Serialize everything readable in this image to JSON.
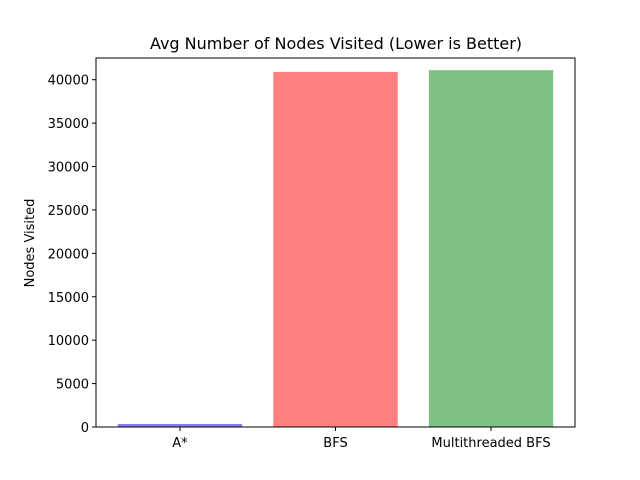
{
  "chart_data": {
    "type": "bar",
    "title": "Avg Number of Nodes Visited (Lower is Better)",
    "xlabel": "",
    "ylabel": "Nodes Visited",
    "categories": [
      "A*",
      "BFS",
      "Multithreaded BFS"
    ],
    "values": [
      350,
      40900,
      41100
    ],
    "colors": [
      "#7f7fee",
      "#ff7f7f",
      "#7fc184"
    ],
    "ylim": [
      0,
      42500
    ],
    "yticks": [
      0,
      5000,
      10000,
      15000,
      20000,
      25000,
      30000,
      35000,
      40000
    ],
    "grid": false,
    "legend": "none"
  }
}
